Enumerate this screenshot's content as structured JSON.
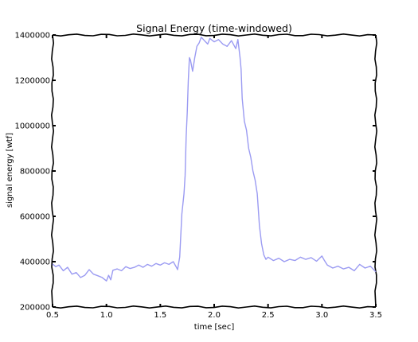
{
  "chart_data": {
    "type": "line",
    "title": "Signal Energy (time-windowed)",
    "xlabel": "time [sec]",
    "ylabel": "signal energy [wtf]",
    "xlim": [
      0.5,
      3.5
    ],
    "ylim": [
      200000,
      1400000
    ],
    "xticks": [
      "0.5",
      "1.0",
      "1.5",
      "2.0",
      "2.5",
      "3.0",
      "3.5"
    ],
    "yticks": [
      "200000",
      "400000",
      "600000",
      "800000",
      "1000000",
      "1200000",
      "1400000"
    ],
    "grid": false,
    "style": "xkcd",
    "series": [
      {
        "color": "#9b9bf2",
        "x": [
          0.5,
          0.53,
          0.56,
          0.6,
          0.64,
          0.68,
          0.72,
          0.76,
          0.8,
          0.84,
          0.88,
          0.92,
          0.96,
          1.0,
          1.02,
          1.04,
          1.06,
          1.1,
          1.14,
          1.18,
          1.22,
          1.26,
          1.3,
          1.34,
          1.38,
          1.42,
          1.46,
          1.5,
          1.54,
          1.58,
          1.62,
          1.65,
          1.66,
          1.68,
          1.7,
          1.72,
          1.73,
          1.74,
          1.75,
          1.76,
          1.77,
          1.78,
          1.8,
          1.82,
          1.84,
          1.86,
          1.88,
          1.9,
          1.92,
          1.94,
          1.96,
          2.0,
          2.04,
          2.08,
          2.12,
          2.16,
          2.2,
          2.22,
          2.24,
          2.25,
          2.26,
          2.28,
          2.3,
          2.32,
          2.34,
          2.36,
          2.38,
          2.4,
          2.42,
          2.44,
          2.46,
          2.48,
          2.5,
          2.55,
          2.6,
          2.65,
          2.7,
          2.75,
          2.8,
          2.85,
          2.9,
          2.95,
          3.0,
          3.02,
          3.05,
          3.1,
          3.15,
          3.2,
          3.25,
          3.3,
          3.35,
          3.4,
          3.45,
          3.5
        ],
        "y": [
          390000,
          378000,
          385000,
          360000,
          375000,
          345000,
          352000,
          330000,
          340000,
          365000,
          345000,
          338000,
          330000,
          315000,
          340000,
          320000,
          362000,
          368000,
          360000,
          378000,
          370000,
          375000,
          385000,
          375000,
          388000,
          380000,
          392000,
          385000,
          395000,
          388000,
          400000,
          375000,
          365000,
          420000,
          610000,
          700000,
          780000,
          950000,
          1060000,
          1200000,
          1300000,
          1290000,
          1240000,
          1300000,
          1350000,
          1365000,
          1390000,
          1380000,
          1370000,
          1360000,
          1385000,
          1370000,
          1380000,
          1360000,
          1350000,
          1375000,
          1340000,
          1380000,
          1300000,
          1250000,
          1120000,
          1020000,
          980000,
          900000,
          860000,
          800000,
          760000,
          700000,
          560000,
          480000,
          430000,
          410000,
          420000,
          405000,
          415000,
          400000,
          410000,
          405000,
          420000,
          410000,
          418000,
          402000,
          425000,
          408000,
          385000,
          372000,
          380000,
          368000,
          375000,
          360000,
          388000,
          372000,
          380000,
          355000
        ]
      }
    ]
  }
}
